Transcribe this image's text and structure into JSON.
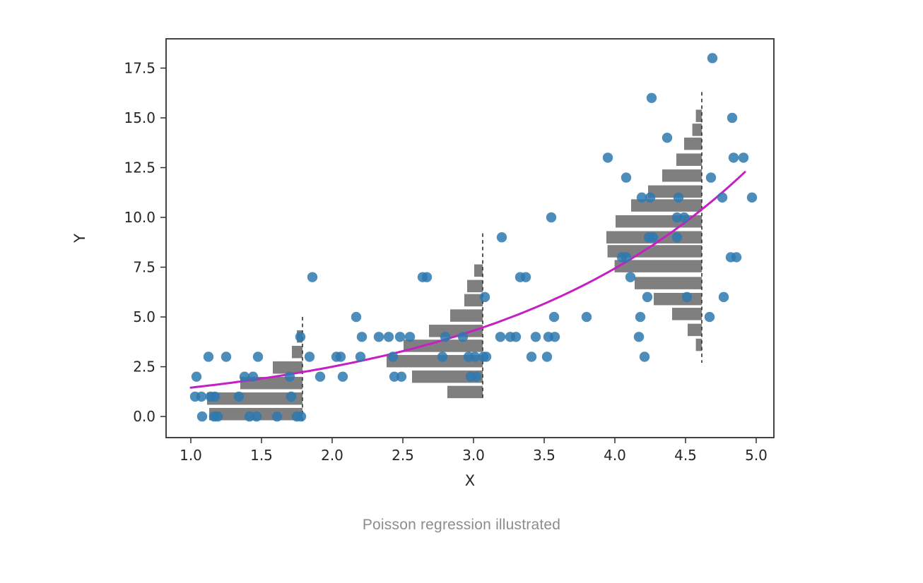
{
  "page": {
    "caption": "Poisson regression illustrated",
    "background": "#ffffff",
    "caption_color": "#8c8c8c"
  },
  "chart_data": {
    "type": "scatter",
    "title": "",
    "xlabel": "X",
    "ylabel": "Y",
    "xlim": [
      0.825,
      5.125
    ],
    "ylim": [
      -1.06,
      18.97
    ],
    "grid": false,
    "legend": "none",
    "x_ticks": [
      1.0,
      1.5,
      2.0,
      2.5,
      3.0,
      3.5,
      4.0,
      4.5,
      5.0
    ],
    "x_tick_labels": [
      "1.0",
      "1.5",
      "2.0",
      "2.5",
      "3.0",
      "3.5",
      "4.0",
      "4.5",
      "5.0"
    ],
    "y_ticks": [
      0.0,
      2.5,
      5.0,
      7.5,
      10.0,
      12.5,
      15.0,
      17.5
    ],
    "y_tick_labels": [
      "0.0",
      "2.5",
      "5.0",
      "7.5",
      "10.0",
      "12.5",
      "15.0",
      "17.5"
    ],
    "colors": {
      "scatter": "#2e79b0",
      "curve": "#c420c4",
      "bars": "#7f7f7f",
      "dashed": "#3a3a3a",
      "spine": "#2f2f2f",
      "tick_label": "#262626"
    },
    "curve": {
      "description": "exponential mean curve of Poisson regression",
      "a": 1.45,
      "b": 0.545,
      "x0": 1.0,
      "x_start": 1.0,
      "x_end": 4.93
    },
    "histograms": [
      {
        "anchor_x": 1.79,
        "bar_height": 0.62,
        "dashed_y": [
          -0.3,
          5.0
        ],
        "bars": [
          [
            0.12,
            0.66
          ],
          [
            0.9,
            0.675
          ],
          [
            1.68,
            0.44
          ],
          [
            2.46,
            0.21
          ],
          [
            3.24,
            0.075
          ],
          [
            4.02,
            0.04
          ]
        ]
      },
      {
        "anchor_x": 3.065,
        "bar_height": 0.62,
        "dashed_y": [
          0.85,
          9.2
        ],
        "bars": [
          [
            1.23,
            0.25
          ],
          [
            2.0,
            0.5
          ],
          [
            2.78,
            0.68
          ],
          [
            3.55,
            0.56
          ],
          [
            4.3,
            0.38
          ],
          [
            5.07,
            0.23
          ],
          [
            5.84,
            0.13
          ],
          [
            6.55,
            0.11
          ],
          [
            7.33,
            0.06
          ]
        ]
      },
      {
        "anchor_x": 4.615,
        "bar_height": 0.62,
        "dashed_y": [
          2.7,
          16.3
        ],
        "bars": [
          [
            3.6,
            0.042
          ],
          [
            4.35,
            0.1
          ],
          [
            5.15,
            0.21
          ],
          [
            5.9,
            0.34
          ],
          [
            6.7,
            0.475
          ],
          [
            7.55,
            0.617
          ],
          [
            8.3,
            0.667
          ],
          [
            9.0,
            0.675
          ],
          [
            9.8,
            0.61
          ],
          [
            10.6,
            0.5
          ],
          [
            11.3,
            0.38
          ],
          [
            12.1,
            0.28
          ],
          [
            12.9,
            0.18
          ],
          [
            13.7,
            0.125
          ],
          [
            14.4,
            0.067
          ],
          [
            15.1,
            0.042
          ]
        ]
      }
    ],
    "scatter_points": [
      [
        1.08,
        0
      ],
      [
        1.165,
        0
      ],
      [
        1.19,
        0
      ],
      [
        1.415,
        0
      ],
      [
        1.465,
        0
      ],
      [
        1.61,
        0
      ],
      [
        1.75,
        0
      ],
      [
        1.78,
        0
      ],
      [
        1.03,
        1
      ],
      [
        1.075,
        1
      ],
      [
        1.14,
        1
      ],
      [
        1.17,
        1
      ],
      [
        1.34,
        1
      ],
      [
        1.71,
        1
      ],
      [
        1.04,
        2
      ],
      [
        1.38,
        2
      ],
      [
        1.44,
        2
      ],
      [
        1.7,
        2
      ],
      [
        1.915,
        2
      ],
      [
        2.075,
        2
      ],
      [
        2.44,
        2
      ],
      [
        2.49,
        2
      ],
      [
        2.98,
        2
      ],
      [
        3.02,
        2
      ],
      [
        1.125,
        3
      ],
      [
        1.25,
        3
      ],
      [
        1.475,
        3
      ],
      [
        1.84,
        3
      ],
      [
        2.03,
        3
      ],
      [
        2.06,
        3
      ],
      [
        2.2,
        3
      ],
      [
        2.43,
        3
      ],
      [
        2.78,
        3
      ],
      [
        2.965,
        3
      ],
      [
        3.01,
        3
      ],
      [
        3.07,
        3
      ],
      [
        3.09,
        3
      ],
      [
        3.41,
        3
      ],
      [
        3.52,
        3
      ],
      [
        4.21,
        3
      ],
      [
        1.775,
        4
      ],
      [
        2.21,
        4
      ],
      [
        2.33,
        4
      ],
      [
        2.4,
        4
      ],
      [
        2.48,
        4
      ],
      [
        2.55,
        4
      ],
      [
        2.8,
        4
      ],
      [
        2.925,
        4
      ],
      [
        3.19,
        4
      ],
      [
        3.26,
        4
      ],
      [
        3.3,
        4
      ],
      [
        3.44,
        4
      ],
      [
        3.53,
        4
      ],
      [
        3.575,
        4
      ],
      [
        4.17,
        4
      ],
      [
        2.17,
        5
      ],
      [
        3.57,
        5
      ],
      [
        3.8,
        5
      ],
      [
        4.18,
        5
      ],
      [
        4.67,
        5
      ],
      [
        3.08,
        6
      ],
      [
        4.23,
        6
      ],
      [
        4.51,
        6
      ],
      [
        4.77,
        6
      ],
      [
        1.86,
        7
      ],
      [
        2.64,
        7
      ],
      [
        2.67,
        7
      ],
      [
        3.33,
        7
      ],
      [
        3.37,
        7
      ],
      [
        4.11,
        7
      ],
      [
        4.05,
        8
      ],
      [
        4.08,
        8
      ],
      [
        4.82,
        8
      ],
      [
        4.86,
        8
      ],
      [
        3.2,
        9
      ],
      [
        4.24,
        9
      ],
      [
        4.27,
        9
      ],
      [
        4.44,
        9
      ],
      [
        3.55,
        10
      ],
      [
        4.44,
        10
      ],
      [
        4.49,
        10
      ],
      [
        4.19,
        11
      ],
      [
        4.25,
        11
      ],
      [
        4.45,
        11
      ],
      [
        4.76,
        11
      ],
      [
        4.97,
        11
      ],
      [
        4.08,
        12
      ],
      [
        4.68,
        12
      ],
      [
        3.95,
        13
      ],
      [
        4.84,
        13
      ],
      [
        4.91,
        13
      ],
      [
        4.37,
        14
      ],
      [
        4.83,
        15
      ],
      [
        4.26,
        16
      ],
      [
        4.69,
        18
      ]
    ]
  }
}
